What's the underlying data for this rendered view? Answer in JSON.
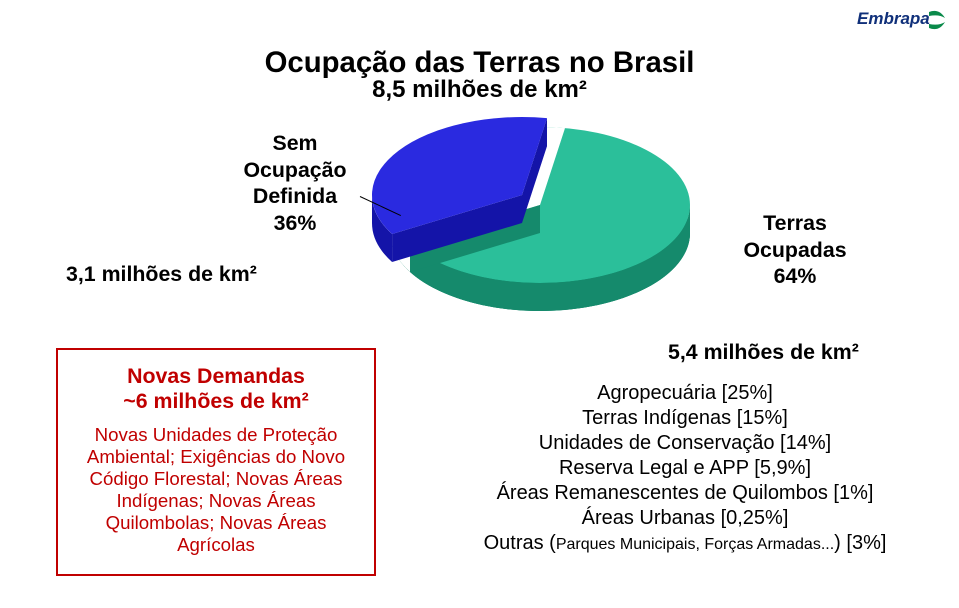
{
  "logo": {
    "brand_text": "Embrapa",
    "brand_green": "#0a8a4a",
    "brand_blue": "#10307a"
  },
  "title": {
    "text": "Ocupação das Terras no Brasil",
    "subtitle": "8,5 milhões de km²",
    "fontsize_pt": 22,
    "subtitle_fontsize_pt": 18,
    "color": "#000000"
  },
  "pie": {
    "type": "pie-3d-exploded",
    "slices": [
      {
        "key": "sem_ocupacao",
        "label_lines": [
          "Sem",
          "Ocupação",
          "Definida"
        ],
        "pct_label": "36%",
        "value": 36,
        "color_top": "#2a2ae0",
        "color_side": "#1414a8"
      },
      {
        "key": "terras_ocupadas",
        "label_lines": [
          "Terras",
          "Ocupadas"
        ],
        "pct_label": "64%",
        "value": 64,
        "color_top": "#2bbf9a",
        "color_side": "#158a6c"
      }
    ],
    "explode_slice": "sem_ocupacao",
    "label_fontsize_pt": 16,
    "label_color": "#000000"
  },
  "km_left": {
    "text": "3,1 milhões de km²",
    "fontsize_pt": 16
  },
  "km_right": {
    "text": "5,4 milhões de km²",
    "fontsize_pt": 16
  },
  "demandas": {
    "border_color": "#c00000",
    "heading_color": "#c00000",
    "heading_line1": "Novas Demandas",
    "heading_line2": "~6 milhões de km²",
    "heading_fontsize_pt": 16,
    "body_color": "#c00000",
    "body_fontsize_pt": 14,
    "body_text": "Novas Unidades de Proteção Ambiental; Exigências do Novo Código Florestal; Novas Áreas Indígenas; Novas Áreas Quilombolas; Novas Áreas Agrícolas"
  },
  "bullets": {
    "fontsize_pt": 15,
    "color": "#000000",
    "items": [
      "Agropecuária [25%]",
      "Terras Indígenas [15%]",
      "Unidades de Conservação [14%]",
      "Reserva Legal e APP [5,9%]",
      "Áreas Remanescentes de Quilombos [1%]",
      "Áreas Urbanas [0,25%]"
    ],
    "last_item_prefix": "Outras (",
    "last_item_small": "Parques Municipais, Forças Armadas...",
    "last_item_suffix": ") [3%]",
    "last_item_small_fontsize_pt": 12
  }
}
